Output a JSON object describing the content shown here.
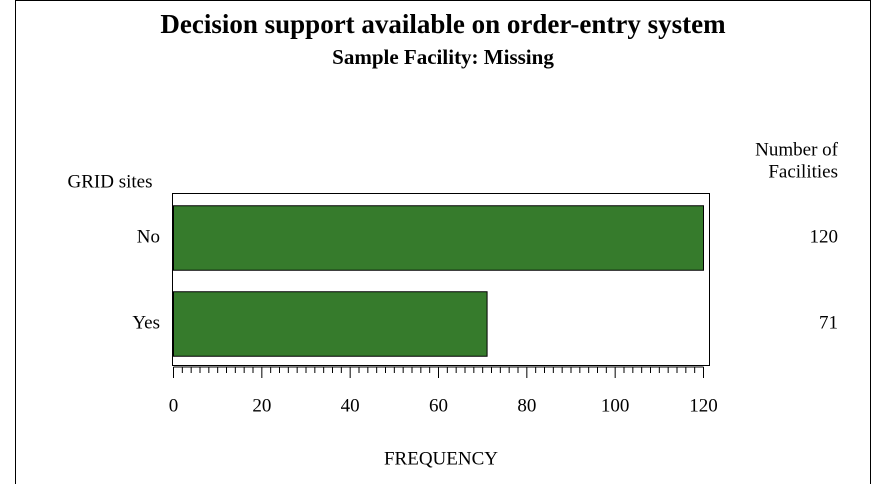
{
  "chart_data": {
    "type": "bar",
    "orientation": "horizontal",
    "title": "Decision support available on order-entry system",
    "subtitle": "Sample Facility: Missing",
    "y_label": "GRID sites",
    "x_label": "FREQUENCY",
    "value_column_header": [
      "Number of",
      "Facilities"
    ],
    "categories": [
      "No",
      "Yes"
    ],
    "values": [
      120,
      71
    ],
    "color": "#367b2c",
    "xlim": [
      0,
      120
    ],
    "xticks": [
      0,
      20,
      40,
      60,
      80,
      100,
      120
    ]
  }
}
